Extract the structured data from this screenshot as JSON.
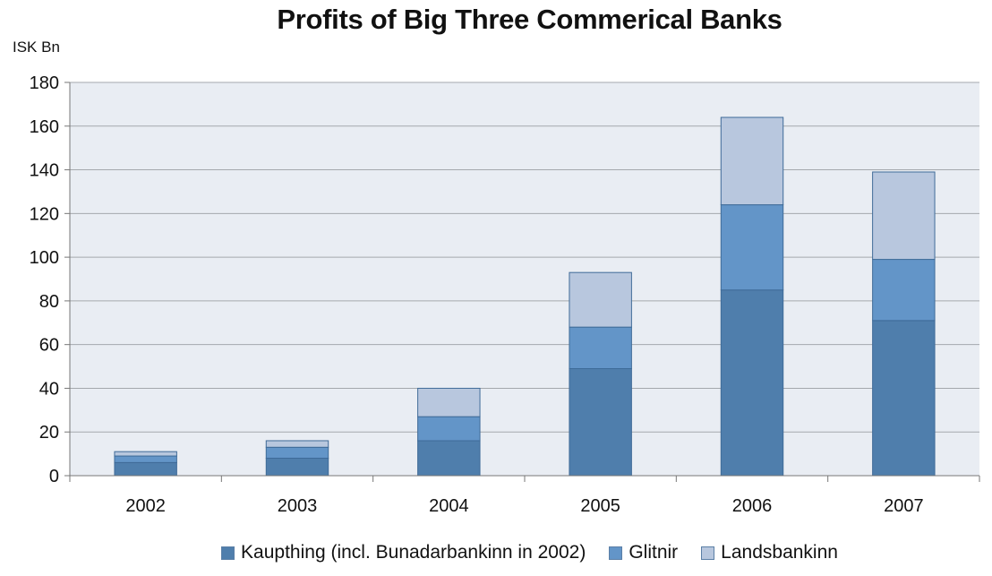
{
  "chart_data": {
    "type": "bar",
    "stacked": true,
    "title": "Profits of Big Three Commerical Banks",
    "ylabel": "ISK Bn",
    "xlabel": "",
    "categories": [
      "2002",
      "2003",
      "2004",
      "2005",
      "2006",
      "2007"
    ],
    "ylim": [
      0,
      180
    ],
    "yticks": [
      0,
      20,
      40,
      60,
      80,
      100,
      120,
      140,
      160,
      180
    ],
    "grid": true,
    "legend_position": "bottom",
    "series": [
      {
        "name": "Kaupthing (incl. Bunadarbankinn in 2002)",
        "color": "#4f7eac",
        "values": [
          6,
          8,
          16,
          49,
          85,
          71
        ]
      },
      {
        "name": "Glitnir",
        "color": "#6395c8",
        "values": [
          3,
          5,
          11,
          19,
          39,
          28
        ]
      },
      {
        "name": "Landsbankinn",
        "color": "#b8c7de",
        "values": [
          2,
          3,
          13,
          25,
          40,
          40
        ]
      }
    ]
  }
}
